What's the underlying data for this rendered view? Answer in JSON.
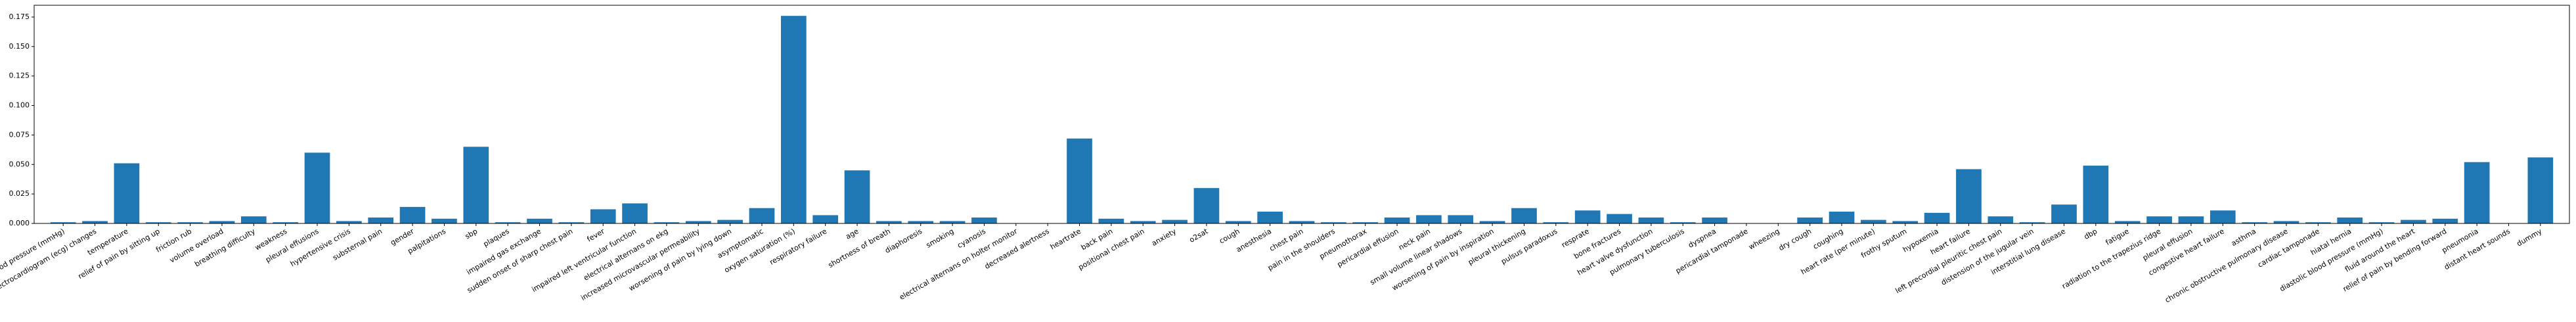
{
  "chart_data": {
    "type": "bar",
    "color": "#1f77b4",
    "categories": [
      "systolic blood pressure (mmHg)",
      "specific electrocardiogram (ecg) changes",
      "temperature",
      "relief of pain by sitting up",
      "friction rub",
      "volume overload",
      "breathing difficulty",
      "weakness",
      "pleural effusions",
      "hypertensive crisis",
      "substernal pain",
      "gender",
      "palpitations",
      "sbp",
      "plaques",
      "impaired gas exchange",
      "sudden onset of sharp chest pain",
      "fever",
      "impaired left ventricular function",
      "electrical alternans on ekg",
      "increased microvascular permeability",
      "worsening of pain by lying down",
      "asymptomatic",
      "oxygen saturation (%)",
      "respiratory failure",
      "age",
      "shortness of breath",
      "diaphoresis",
      "smoking",
      "cyanosis",
      "electrical alternans on holter monitor",
      "decreased alertness",
      "heartrate",
      "back pain",
      "positional chest pain",
      "anxiety",
      "o2sat",
      "cough",
      "anesthesia",
      "chest pain",
      "pain in the shoulders",
      "pneumothorax",
      "pericardial effusion",
      "neck pain",
      "small volume linear shadows",
      "worsening of pain by inspiration",
      "pleural thickening",
      "pulsus paradoxus",
      "resprate",
      "bone fractures",
      "heart valve dysfunction",
      "pulmonary tuberculosis",
      "dyspnea",
      "pericardial tamponade",
      "wheezing",
      "dry cough",
      "coughing",
      "heart rate (per minute)",
      "frothy sputum",
      "hypoxemia",
      "heart failure",
      "left precordial pleuritic chest pain",
      "distension of the jugular vein",
      "interstitial lung disease",
      "dbp",
      "fatigue",
      "radiation to the trapezius ridge",
      "pleural effusion",
      "congestive heart failure",
      "asthma",
      "chronic obstructive pulmonary disease",
      "cardiac tamponade",
      "hiatal hernia",
      "diastolic blood pressure (mmHg)",
      "fluid around the heart",
      "relief of pain by bending forward",
      "pneumonia",
      "distant heart sounds",
      "dummy"
    ],
    "values": [
      0.001,
      0.002,
      0.051,
      0.001,
      0.001,
      0.002,
      0.006,
      0.001,
      0.06,
      0.002,
      0.005,
      0.014,
      0.004,
      0.065,
      0.001,
      0.004,
      0.001,
      0.012,
      0.017,
      0.001,
      0.002,
      0.003,
      0.013,
      0.176,
      0.007,
      0.045,
      0.002,
      0.002,
      0.002,
      0.005,
      0.0,
      0.0,
      0.072,
      0.004,
      0.002,
      0.003,
      0.03,
      0.002,
      0.01,
      0.002,
      0.001,
      0.001,
      0.005,
      0.007,
      0.007,
      0.002,
      0.013,
      0.001,
      0.011,
      0.008,
      0.005,
      0.001,
      0.005,
      0.0,
      0.0,
      0.005,
      0.01,
      0.003,
      0.002,
      0.009,
      0.046,
      0.006,
      0.001,
      0.016,
      0.049,
      0.002,
      0.006,
      0.006,
      0.011,
      0.001,
      0.002,
      0.001,
      0.005,
      0.001,
      0.003,
      0.004,
      0.052,
      0.0,
      0.056
    ],
    "ylim": [
      0,
      0.185
    ],
    "yticks": [
      {
        "value": 0,
        "label": "0.000"
      },
      {
        "value": 0.025,
        "label": "0.025"
      },
      {
        "value": 0.05,
        "label": "0.050"
      },
      {
        "value": 0.075,
        "label": "0.075"
      },
      {
        "value": 0.1,
        "label": "0.100"
      },
      {
        "value": 0.125,
        "label": "0.125"
      },
      {
        "value": 0.15,
        "label": "0.150"
      },
      {
        "value": 0.175,
        "label": "0.175"
      }
    ]
  }
}
